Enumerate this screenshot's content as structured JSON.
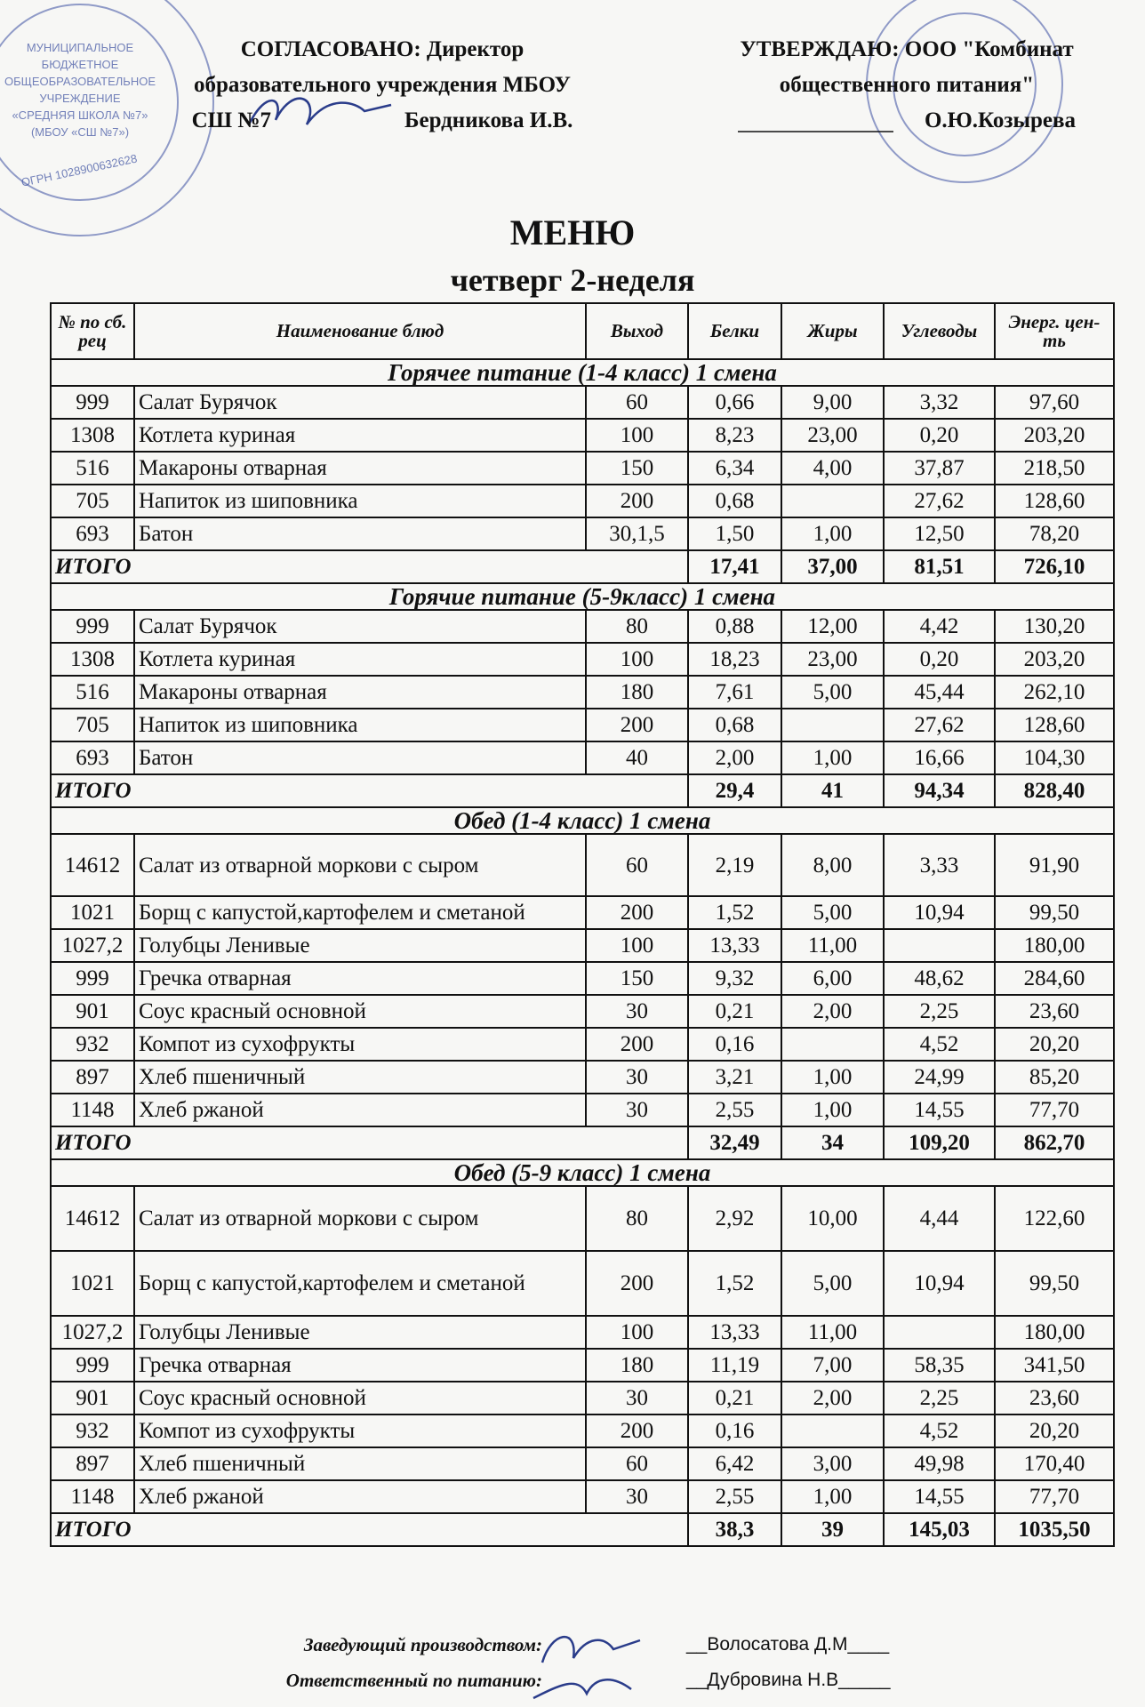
{
  "stamp_left": {
    "lines": [
      "МУНИЦИПАЛЬНОЕ",
      "БЮДЖЕТНОЕ",
      "ОБЩЕОБРАЗОВАТЕЛЬНОЕ",
      "УЧРЕЖДЕНИЕ",
      "«СРЕДНЯЯ ШКОЛА №7»",
      "(МБОУ «СШ №7»)"
    ],
    "ogrn": "ОГРН 1028900632628"
  },
  "header": {
    "approved_left": [
      "СОГЛАСОВАНО: Директор",
      "образовательного учреждения  МБОУ",
      "СШ №7",
      "Бердникова И.В."
    ],
    "approved_right": [
      "УТВЕРЖДАЮ: ООО \"Комбинат",
      "общественного питания\"",
      "О.Ю.Козырева"
    ],
    "title": "МЕНЮ",
    "subtitle": "четверг 2-неделя"
  },
  "table": {
    "columns": [
      "№ по сб. рец",
      "Наименование блюд",
      "Выход",
      "Белки",
      "Жиры",
      "Углеводы",
      "Энерг. цен-ть"
    ],
    "sections": [
      {
        "title": "Горячее питание (1-4 класс) 1 смена",
        "rows": [
          [
            "999",
            "Салат Бурячок",
            "60",
            "0,66",
            "9,00",
            "3,32",
            "97,60"
          ],
          [
            "1308",
            "Котлета куриная",
            "100",
            "8,23",
            "23,00",
            "0,20",
            "203,20"
          ],
          [
            "516",
            "Макароны отварная",
            "150",
            "6,34",
            "4,00",
            "37,87",
            "218,50"
          ],
          [
            "705",
            "Напиток из шиповника",
            "200",
            "0,68",
            null,
            "27,62",
            "128,60"
          ],
          [
            "693",
            "Батон",
            "30,1,5",
            "1,50",
            "1,00",
            "12,50",
            "78,20"
          ]
        ],
        "total": {
          "label": "ИТОГО",
          "values": [
            "17,41",
            "37,00",
            "81,51",
            "726,10"
          ]
        }
      },
      {
        "title": "Горячие питание (5-9класс) 1 смена",
        "rows": [
          [
            "999",
            "Салат Бурячок",
            "80",
            "0,88",
            "12,00",
            "4,42",
            "130,20"
          ],
          [
            "1308",
            "Котлета куриная",
            "100",
            "18,23",
            "23,00",
            "0,20",
            "203,20"
          ],
          [
            "516",
            "Макароны отварная",
            "180",
            "7,61",
            "5,00",
            "45,44",
            "262,10"
          ],
          [
            "705",
            "Напиток из шиповника",
            "200",
            "0,68",
            null,
            "27,62",
            "128,60"
          ],
          [
            "693",
            "Батон",
            "40",
            "2,00",
            "1,00",
            "16,66",
            "104,30"
          ]
        ],
        "total": {
          "label": "ИТОГО",
          "values": [
            "29,4",
            "41",
            "94,34",
            "828,40"
          ]
        }
      },
      {
        "title": "Обед (1-4 класс) 1 смена",
        "rows": [
          [
            "14612",
            "Салат из отварной моркови с сыром",
            "60",
            "2,19",
            "8,00",
            "3,33",
            "91,90"
          ],
          [
            "1021",
            "Борщ с капустой,картофелем и сметаной",
            "200",
            "1,52",
            "5,00",
            "10,94",
            "99,50"
          ],
          [
            "1027,2",
            "Голубцы Ленивые",
            "100",
            "13,33",
            "11,00",
            null,
            "180,00"
          ],
          [
            "999",
            "Гречка отварная",
            "150",
            "9,32",
            "6,00",
            "48,62",
            "284,60"
          ],
          [
            "901",
            "Соус красный основной",
            "30",
            "0,21",
            "2,00",
            "2,25",
            "23,60"
          ],
          [
            "932",
            "Компот из сухофрукты",
            "200",
            "0,16",
            null,
            "4,52",
            "20,20"
          ],
          [
            "897",
            "Хлеб пшеничный",
            "30",
            "3,21",
            "1,00",
            "24,99",
            "85,20"
          ],
          [
            "1148",
            "Хлеб ржаной",
            "30",
            "2,55",
            "1,00",
            "14,55",
            "77,70"
          ]
        ],
        "total": {
          "label": "ИТОГО",
          "values": [
            "32,49",
            "34",
            "109,20",
            "862,70"
          ]
        }
      },
      {
        "title": "Обед (5-9 класс) 1 смена",
        "rows": [
          [
            "14612",
            "Салат из отварной моркови с сыром",
            "80",
            "2,92",
            "10,00",
            "4,44",
            "122,60"
          ],
          [
            "1021",
            "Борщ с капустой,картофелем и сметаной",
            "200",
            "1,52",
            "5,00",
            "10,94",
            "99,50"
          ],
          [
            "1027,2",
            "Голубцы Ленивые",
            "100",
            "13,33",
            "11,00",
            null,
            "180,00"
          ],
          [
            "999",
            "Гречка отварная",
            "180",
            "11,19",
            "7,00",
            "58,35",
            "341,50"
          ],
          [
            "901",
            "Соус красный основной",
            "30",
            "0,21",
            "2,00",
            "2,25",
            "23,60"
          ],
          [
            "932",
            "Компот из сухофрукты",
            "200",
            "0,16",
            null,
            "4,52",
            "20,20"
          ],
          [
            "897",
            "Хлеб пшеничный",
            "60",
            "6,42",
            "3,00",
            "49,98",
            "170,40"
          ],
          [
            "1148",
            "Хлеб ржаной",
            "30",
            "2,55",
            "1,00",
            "14,55",
            "77,70"
          ]
        ],
        "total": {
          "label": "ИТОГО",
          "values": [
            "38,3",
            "39",
            "145,03",
            "1035,50"
          ]
        }
      }
    ]
  },
  "footer": {
    "rows": [
      {
        "role": "Заведующий производством:",
        "name": "__Волосатова Д.М____"
      },
      {
        "role": "Ответственный по питанию:",
        "name": "__Дубровина Н.В_____"
      }
    ]
  }
}
